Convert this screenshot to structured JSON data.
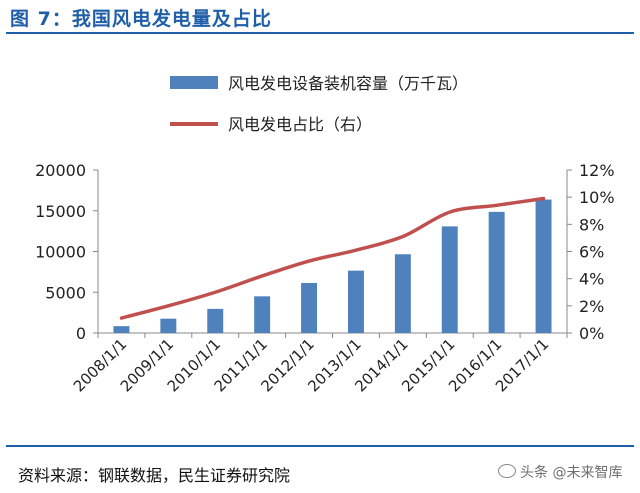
{
  "figure_title": "图 7：我国风电发电量及占比",
  "source_note": "资料来源：钢联数据，民生证券研究院",
  "watermark": "头条 @未来智库",
  "colors": {
    "bar": "#4f81bd",
    "line": "#c0504d",
    "title": "#1f5ea8"
  },
  "chart_data": {
    "type": "bar",
    "categories": [
      "2008/1/1",
      "2009/1/1",
      "2010/1/1",
      "2011/1/1",
      "2012/1/1",
      "2013/1/1",
      "2014/1/1",
      "2015/1/1",
      "2016/1/1",
      "2017/1/1"
    ],
    "series": [
      {
        "name": "风电发电设备装机容量（万千瓦）",
        "type": "bar",
        "axis": "left",
        "values": [
          840,
          1760,
          2960,
          4500,
          6140,
          7650,
          9660,
          13080,
          14860,
          16370
        ]
      },
      {
        "name": "风电发电占比（右）",
        "type": "line",
        "axis": "right",
        "values": [
          1.1,
          2.0,
          3.0,
          4.2,
          5.3,
          6.1,
          7.1,
          8.9,
          9.4,
          9.9
        ]
      }
    ],
    "y_left": {
      "min": 0,
      "max": 20000,
      "ticks": [
        "0",
        "5000",
        "10000",
        "15000",
        "20000"
      ],
      "tick_values": [
        0,
        5000,
        10000,
        15000,
        20000
      ]
    },
    "y_right": {
      "min": 0,
      "max": 12,
      "ticks": [
        "0%",
        "2%",
        "4%",
        "6%",
        "8%",
        "10%",
        "12%"
      ],
      "tick_values": [
        0,
        2,
        4,
        6,
        8,
        10,
        12
      ]
    },
    "legend_position": "top-center",
    "grid": false
  }
}
